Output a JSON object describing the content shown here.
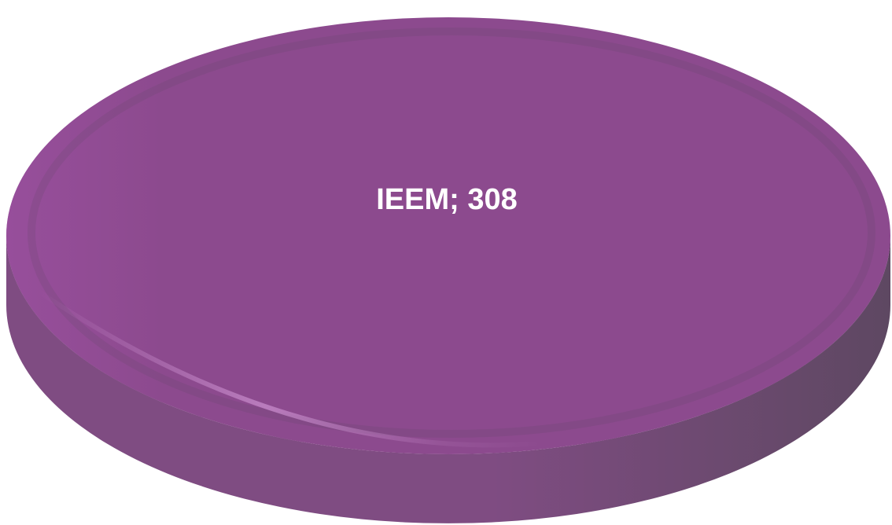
{
  "chart_data": {
    "type": "pie",
    "style": "3d",
    "categories": [
      "IEEM"
    ],
    "values": [
      308
    ],
    "data_labels": [
      "IEEM; 308"
    ],
    "title": "",
    "legend": "none",
    "colors": {
      "top": "#8c4a8e",
      "top_left_highlight": "#a052a6",
      "side_light": "#7f4c82",
      "side_dark": "#5e4862",
      "rim_highlight": "#c88ccc",
      "label": "#ffffff"
    }
  }
}
